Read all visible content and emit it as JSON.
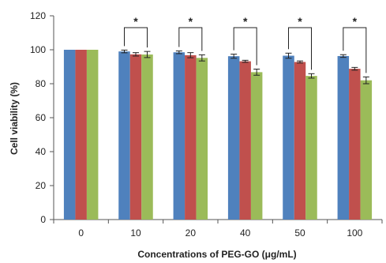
{
  "chart_data": {
    "type": "bar",
    "title": "",
    "xlabel": "Concentrations of PEG-GO (μg/mL)",
    "ylabel": "Cell viability (%)",
    "ylim": [
      0,
      120
    ],
    "yticks": [
      0,
      20,
      40,
      60,
      80,
      100,
      120
    ],
    "categories": [
      "0",
      "10",
      "20",
      "40",
      "50",
      "100"
    ],
    "series": [
      {
        "color": "#4f81bd",
        "values": [
          100,
          99,
          98.5,
          96.2,
          96.5,
          96.3
        ],
        "errors": [
          0,
          0.8,
          0.8,
          1.2,
          1.5,
          0.8
        ]
      },
      {
        "color": "#c0504d",
        "values": [
          100,
          97.3,
          96.8,
          93.2,
          92.8,
          88.8
        ],
        "errors": [
          0,
          1.0,
          1.5,
          0.6,
          0.6,
          0.8
        ]
      },
      {
        "color": "#9bbb59",
        "values": [
          100,
          97.2,
          95.2,
          86.8,
          84.6,
          82.0
        ],
        "errors": [
          0,
          1.8,
          1.8,
          1.8,
          1.3,
          2.0
        ]
      }
    ],
    "significance": [
      {
        "category": "10",
        "label": "*"
      },
      {
        "category": "20",
        "label": "*"
      },
      {
        "category": "40",
        "label": "*"
      },
      {
        "category": "50",
        "label": "*"
      },
      {
        "category": "100",
        "label": "*"
      }
    ],
    "legend": "none",
    "grid": false
  }
}
